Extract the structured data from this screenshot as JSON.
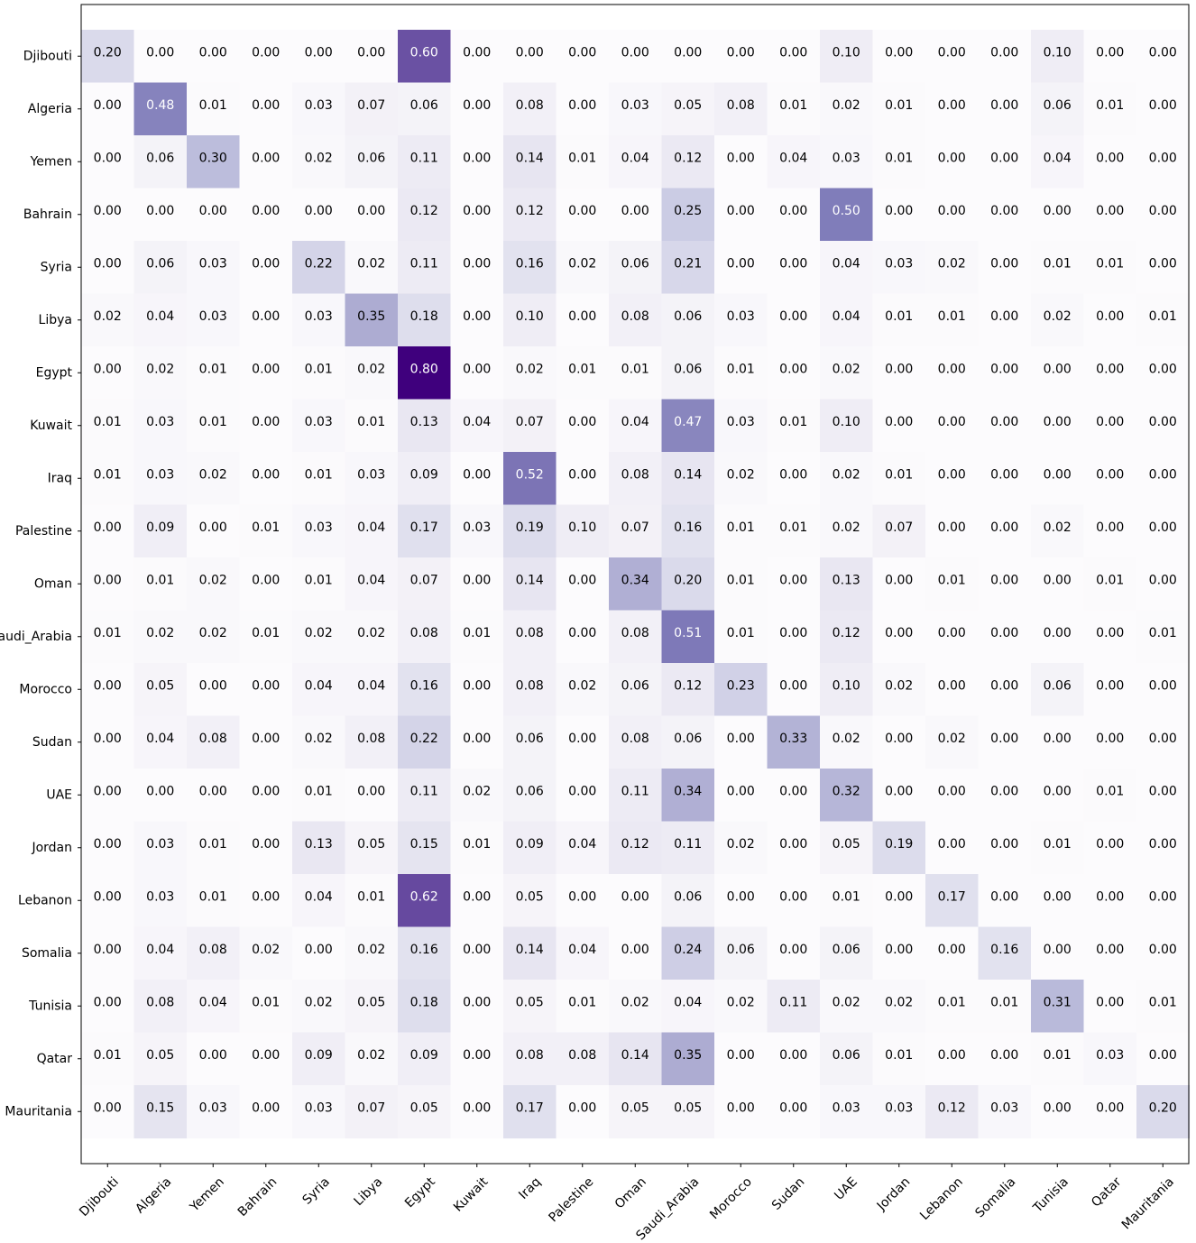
{
  "chart_data": {
    "type": "heatmap",
    "title": "",
    "xlabel": "",
    "ylabel": "",
    "colormap": "Purples",
    "value_range": [
      0,
      0.8
    ],
    "text_color_light": "#ffffff",
    "text_color_dark": "#000000",
    "row_labels": [
      "Djibouti",
      "Algeria",
      "Yemen",
      "Bahrain",
      "Syria",
      "Libya",
      "Egypt",
      "Kuwait",
      "Iraq",
      "Palestine",
      "Oman",
      "Saudi_Arabia",
      "Morocco",
      "Sudan",
      "UAE",
      "Jordan",
      "Lebanon",
      "Somalia",
      "Tunisia",
      "Qatar",
      "Mauritania"
    ],
    "col_labels": [
      "Djibouti",
      "Algeria",
      "Yemen",
      "Bahrain",
      "Syria",
      "Libya",
      "Egypt",
      "Kuwait",
      "Iraq",
      "Palestine",
      "Oman",
      "Saudi_Arabia",
      "Morocco",
      "Sudan",
      "UAE",
      "Jordan",
      "Lebanon",
      "Somalia",
      "Tunisia",
      "Qatar",
      "Mauritania"
    ],
    "values": [
      [
        0.2,
        0.0,
        0.0,
        0.0,
        0.0,
        0.0,
        0.6,
        0.0,
        0.0,
        0.0,
        0.0,
        0.0,
        0.0,
        0.0,
        0.1,
        0.0,
        0.0,
        0.0,
        0.1,
        0.0,
        0.0
      ],
      [
        0.0,
        0.48,
        0.01,
        0.0,
        0.03,
        0.07,
        0.06,
        0.0,
        0.08,
        0.0,
        0.03,
        0.05,
        0.08,
        0.01,
        0.02,
        0.01,
        0.0,
        0.0,
        0.06,
        0.01,
        0.0
      ],
      [
        0.0,
        0.06,
        0.3,
        0.0,
        0.02,
        0.06,
        0.11,
        0.0,
        0.14,
        0.01,
        0.04,
        0.12,
        0.0,
        0.04,
        0.03,
        0.01,
        0.0,
        0.0,
        0.04,
        0.0,
        0.0
      ],
      [
        0.0,
        0.0,
        0.0,
        0.0,
        0.0,
        0.0,
        0.12,
        0.0,
        0.12,
        0.0,
        0.0,
        0.25,
        0.0,
        0.0,
        0.5,
        0.0,
        0.0,
        0.0,
        0.0,
        0.0,
        0.0
      ],
      [
        0.0,
        0.06,
        0.03,
        0.0,
        0.22,
        0.02,
        0.11,
        0.0,
        0.16,
        0.02,
        0.06,
        0.21,
        0.0,
        0.0,
        0.04,
        0.03,
        0.02,
        0.0,
        0.01,
        0.01,
        0.0
      ],
      [
        0.02,
        0.04,
        0.03,
        0.0,
        0.03,
        0.35,
        0.18,
        0.0,
        0.1,
        0.0,
        0.08,
        0.06,
        0.03,
        0.0,
        0.04,
        0.01,
        0.01,
        0.0,
        0.02,
        0.0,
        0.01
      ],
      [
        0.0,
        0.02,
        0.01,
        0.0,
        0.01,
        0.02,
        0.8,
        0.0,
        0.02,
        0.01,
        0.01,
        0.06,
        0.01,
        0.0,
        0.02,
        0.0,
        0.0,
        0.0,
        0.0,
        0.0,
        0.0
      ],
      [
        0.01,
        0.03,
        0.01,
        0.0,
        0.03,
        0.01,
        0.13,
        0.04,
        0.07,
        0.0,
        0.04,
        0.47,
        0.03,
        0.01,
        0.1,
        0.0,
        0.0,
        0.0,
        0.0,
        0.0,
        0.0
      ],
      [
        0.01,
        0.03,
        0.02,
        0.0,
        0.01,
        0.03,
        0.09,
        0.0,
        0.52,
        0.0,
        0.08,
        0.14,
        0.02,
        0.0,
        0.02,
        0.01,
        0.0,
        0.0,
        0.0,
        0.0,
        0.0
      ],
      [
        0.0,
        0.09,
        0.0,
        0.01,
        0.03,
        0.04,
        0.17,
        0.03,
        0.19,
        0.1,
        0.07,
        0.16,
        0.01,
        0.01,
        0.02,
        0.07,
        0.0,
        0.0,
        0.02,
        0.0,
        0.0
      ],
      [
        0.0,
        0.01,
        0.02,
        0.0,
        0.01,
        0.04,
        0.07,
        0.0,
        0.14,
        0.0,
        0.34,
        0.2,
        0.01,
        0.0,
        0.13,
        0.0,
        0.01,
        0.0,
        0.0,
        0.01,
        0.0
      ],
      [
        0.01,
        0.02,
        0.02,
        0.01,
        0.02,
        0.02,
        0.08,
        0.01,
        0.08,
        0.0,
        0.08,
        0.51,
        0.01,
        0.0,
        0.12,
        0.0,
        0.0,
        0.0,
        0.0,
        0.0,
        0.01
      ],
      [
        0.0,
        0.05,
        0.0,
        0.0,
        0.04,
        0.04,
        0.16,
        0.0,
        0.08,
        0.02,
        0.06,
        0.12,
        0.23,
        0.0,
        0.1,
        0.02,
        0.0,
        0.0,
        0.06,
        0.0,
        0.0
      ],
      [
        0.0,
        0.04,
        0.08,
        0.0,
        0.02,
        0.08,
        0.22,
        0.0,
        0.06,
        0.0,
        0.08,
        0.06,
        0.0,
        0.33,
        0.02,
        0.0,
        0.02,
        0.0,
        0.0,
        0.0,
        0.0
      ],
      [
        0.0,
        0.0,
        0.0,
        0.0,
        0.01,
        0.0,
        0.11,
        0.02,
        0.06,
        0.0,
        0.11,
        0.34,
        0.0,
        0.0,
        0.32,
        0.0,
        0.0,
        0.0,
        0.0,
        0.01,
        0.0
      ],
      [
        0.0,
        0.03,
        0.01,
        0.0,
        0.13,
        0.05,
        0.15,
        0.01,
        0.09,
        0.04,
        0.12,
        0.11,
        0.02,
        0.0,
        0.05,
        0.19,
        0.0,
        0.0,
        0.01,
        0.0,
        0.0
      ],
      [
        0.0,
        0.03,
        0.01,
        0.0,
        0.04,
        0.01,
        0.62,
        0.0,
        0.05,
        0.0,
        0.0,
        0.06,
        0.0,
        0.0,
        0.01,
        0.0,
        0.17,
        0.0,
        0.0,
        0.0,
        0.0
      ],
      [
        0.0,
        0.04,
        0.08,
        0.02,
        0.0,
        0.02,
        0.16,
        0.0,
        0.14,
        0.04,
        0.0,
        0.24,
        0.06,
        0.0,
        0.06,
        0.0,
        0.0,
        0.16,
        0.0,
        0.0,
        0.0
      ],
      [
        0.0,
        0.08,
        0.04,
        0.01,
        0.02,
        0.05,
        0.18,
        0.0,
        0.05,
        0.01,
        0.02,
        0.04,
        0.02,
        0.11,
        0.02,
        0.02,
        0.01,
        0.01,
        0.31,
        0.0,
        0.01
      ],
      [
        0.01,
        0.05,
        0.0,
        0.0,
        0.09,
        0.02,
        0.09,
        0.0,
        0.08,
        0.08,
        0.14,
        0.35,
        0.0,
        0.0,
        0.06,
        0.01,
        0.0,
        0.0,
        0.01,
        0.03,
        0.0
      ],
      [
        0.0,
        0.15,
        0.03,
        0.0,
        0.03,
        0.07,
        0.05,
        0.0,
        0.17,
        0.0,
        0.05,
        0.05,
        0.0,
        0.0,
        0.03,
        0.03,
        0.12,
        0.03,
        0.0,
        0.0,
        0.2
      ]
    ],
    "grid": false,
    "legend": "none"
  }
}
